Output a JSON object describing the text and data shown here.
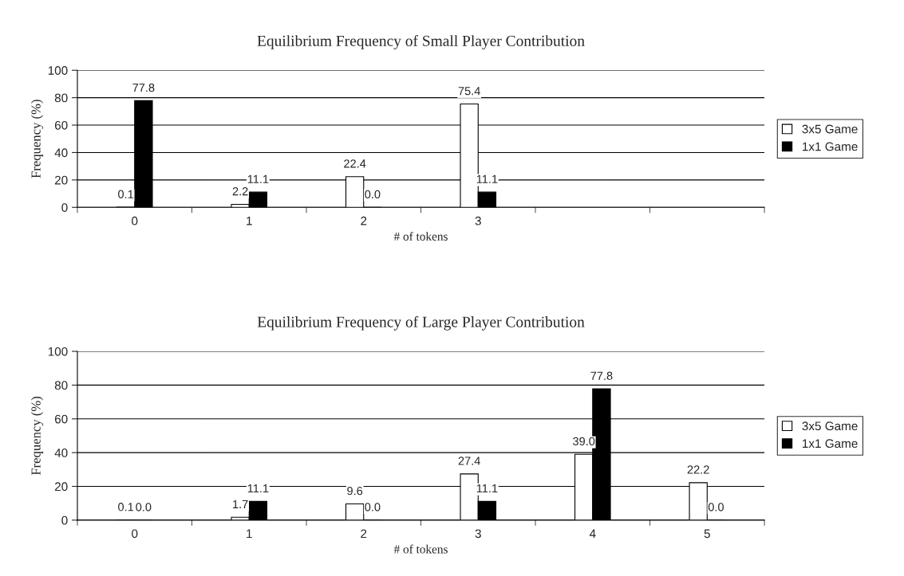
{
  "chart_data": [
    {
      "type": "bar",
      "title": "Equilibrium Frequency of Small Player Contribution",
      "xlabel": "# of tokens",
      "ylabel": "Frequency (%)",
      "categories": [
        "0",
        "1",
        "2",
        "3",
        null,
        null
      ],
      "series": [
        {
          "name": "3x5 Game",
          "color": "#ffffff",
          "values": [
            0.1,
            2.2,
            22.4,
            75.4,
            null,
            null
          ],
          "value_labels": [
            "0.1",
            "2.2",
            "22.4",
            "75.4",
            null,
            null
          ]
        },
        {
          "name": "1x1 Game",
          "color": "#000000",
          "values": [
            77.8,
            11.1,
            0.0,
            11.1,
            null,
            null
          ],
          "value_labels": [
            "77.8",
            "11.1",
            "0.0",
            "11.1",
            null,
            null
          ]
        }
      ],
      "ylim": [
        0,
        100
      ],
      "yticks": [
        0,
        20,
        40,
        60,
        80,
        100
      ],
      "grid": "y",
      "legend": "right"
    },
    {
      "type": "bar",
      "title": "Equilibrium Frequency of Large Player Contribution",
      "xlabel": "# of tokens",
      "ylabel": "Frequency (%)",
      "categories": [
        "0",
        "1",
        "2",
        "3",
        "4",
        "5"
      ],
      "series": [
        {
          "name": "3x5 Game",
          "color": "#ffffff",
          "values": [
            0.1,
            1.7,
            9.6,
            27.4,
            39.0,
            22.2
          ],
          "value_labels": [
            "0.1",
            "1.7",
            "9.6",
            "27.4",
            "39.0",
            "22.2"
          ]
        },
        {
          "name": "1x1 Game",
          "color": "#000000",
          "values": [
            0.0,
            11.1,
            0.0,
            11.1,
            77.8,
            0.0
          ],
          "value_labels": [
            "0.0",
            "11.1",
            "0.0",
            "11.1",
            "77.8",
            "0.0"
          ]
        }
      ],
      "ylim": [
        0,
        100
      ],
      "yticks": [
        0,
        20,
        40,
        60,
        80,
        100
      ],
      "grid": "y",
      "legend": "right"
    }
  ]
}
